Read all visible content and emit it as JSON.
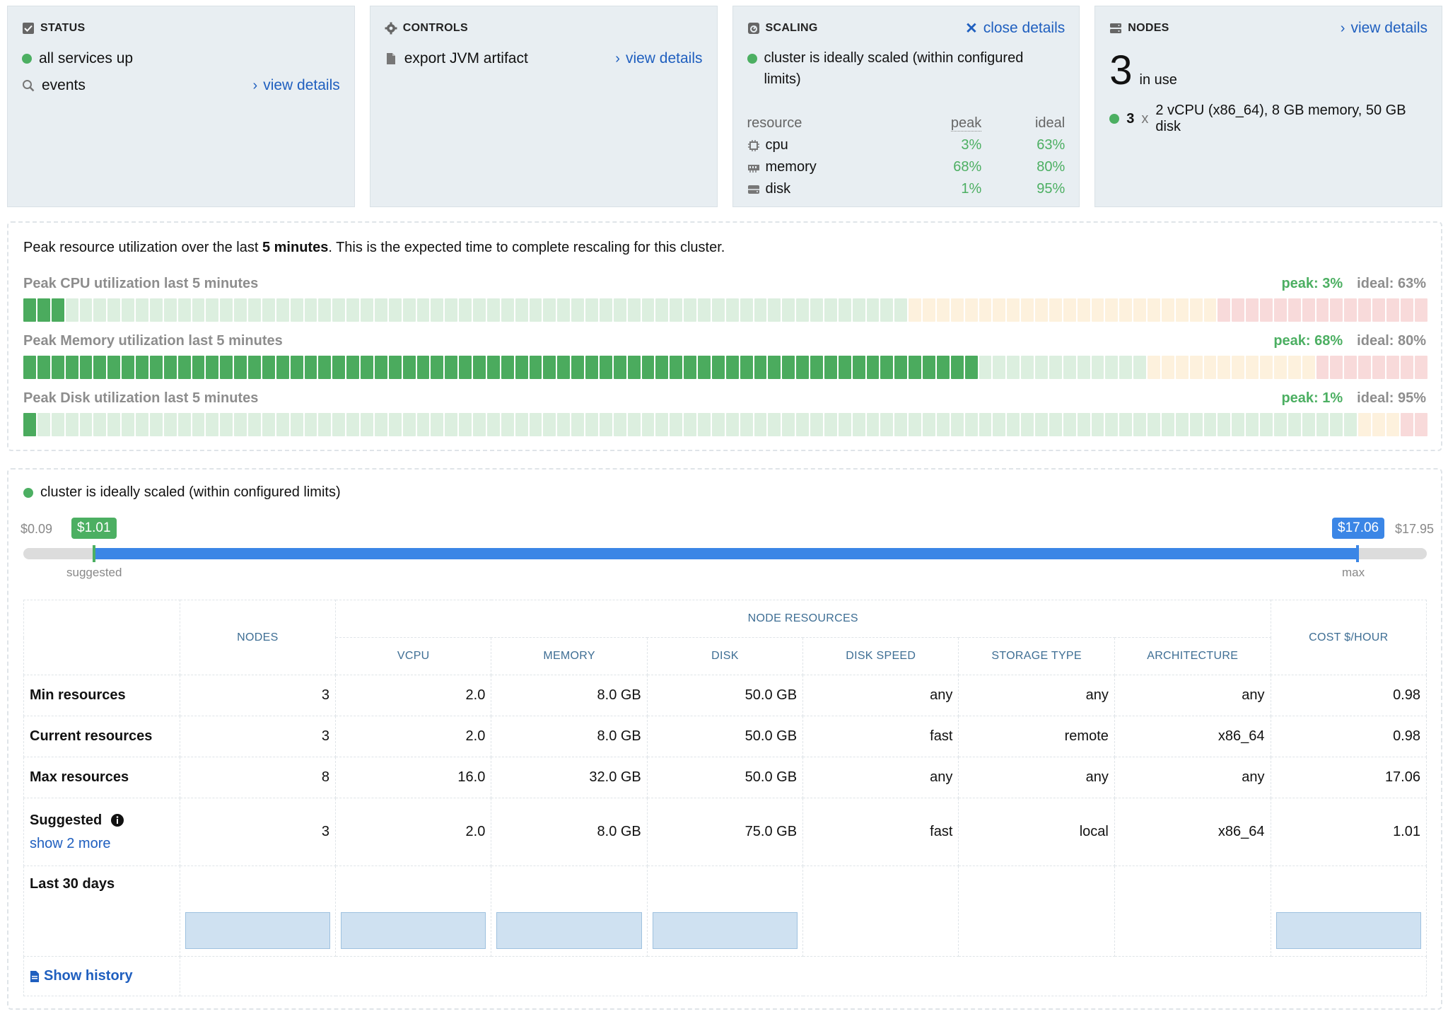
{
  "status": {
    "title": "STATUS",
    "services": "all services up",
    "events": "events",
    "view_details": "view details"
  },
  "controls": {
    "title": "CONTROLS",
    "export": "export JVM artifact",
    "view_details": "view details"
  },
  "scaling": {
    "title": "SCALING",
    "close_details": "close details",
    "message": "cluster is ideally scaled (within configured limits)",
    "headers": {
      "resource": "resource",
      "peak": "peak",
      "ideal": "ideal"
    },
    "rows": [
      {
        "name": "cpu",
        "peak": "3%",
        "ideal": "63%",
        "icon": "cpu-icon"
      },
      {
        "name": "memory",
        "peak": "68%",
        "ideal": "80%",
        "icon": "memory-icon"
      },
      {
        "name": "disk",
        "peak": "1%",
        "ideal": "95%",
        "icon": "disk-icon"
      }
    ]
  },
  "nodes": {
    "title": "NODES",
    "view_details": "view details",
    "count": "3",
    "in_use": "in use",
    "spec_count": "3",
    "spec_x": "x",
    "spec": "2 vCPU (x86_64), 8 GB memory, 50 GB disk"
  },
  "utilization": {
    "intro_pre": "Peak resource utilization over the last ",
    "intro_bold": "5 minutes",
    "intro_post": ". This is the expected time to complete rescaling for this cluster.",
    "bars": [
      {
        "label": "Peak CPU utilization last 5 minutes",
        "peak": "peak: 3%",
        "ideal": "ideal: 63%",
        "peak_value": 0.03,
        "ideal_value": 0.63
      },
      {
        "label": "Peak Memory utilization last 5 minutes",
        "peak": "peak: 68%",
        "ideal": "ideal: 80%",
        "peak_value": 0.68,
        "ideal_value": 0.8
      },
      {
        "label": "Peak Disk utilization last 5 minutes",
        "peak": "peak: 1%",
        "ideal": "ideal: 95%",
        "peak_value": 0.01,
        "ideal_value": 0.95
      }
    ]
  },
  "cost": {
    "status": "cluster is ideally scaled (within configured limits)",
    "min": "$0.09",
    "max": "$17.95",
    "suggested_value": "$1.01",
    "max_value": "$17.06",
    "suggested_label": "suggested",
    "max_label": "max"
  },
  "table": {
    "headers": {
      "nodes": "NODES",
      "node_resources": "NODE RESOURCES",
      "vcpu": "VCPU",
      "memory": "MEMORY",
      "disk": "DISK",
      "disk_speed": "DISK SPEED",
      "storage_type": "STORAGE TYPE",
      "architecture": "ARCHITECTURE",
      "cost": "COST $/HOUR"
    },
    "rows": [
      {
        "label": "Min resources",
        "nodes": "3",
        "vcpu": "2.0",
        "memory": "8.0 GB",
        "disk": "50.0 GB",
        "disk_speed": "any",
        "storage_type": "any",
        "architecture": "any",
        "cost": "0.98"
      },
      {
        "label": "Current resources",
        "nodes": "3",
        "vcpu": "2.0",
        "memory": "8.0 GB",
        "disk": "50.0 GB",
        "disk_speed": "fast",
        "storage_type": "remote",
        "architecture": "x86_64",
        "cost": "0.98"
      },
      {
        "label": "Max resources",
        "nodes": "8",
        "vcpu": "16.0",
        "memory": "32.0 GB",
        "disk": "50.0 GB",
        "disk_speed": "any",
        "storage_type": "any",
        "architecture": "any",
        "cost": "17.06"
      },
      {
        "label": "Suggested",
        "nodes": "3",
        "vcpu": "2.0",
        "memory": "8.0 GB",
        "disk": "75.0 GB",
        "disk_speed": "fast",
        "storage_type": "local",
        "architecture": "x86_64",
        "cost": "1.01"
      }
    ],
    "show_more": "show 2 more",
    "last30": "Last 30 days",
    "show_history": "Show history"
  },
  "colors": {
    "green": "#4caf62",
    "blue": "#3b86e6",
    "link": "#1f5fbf",
    "card_bg": "#e8eef2"
  }
}
